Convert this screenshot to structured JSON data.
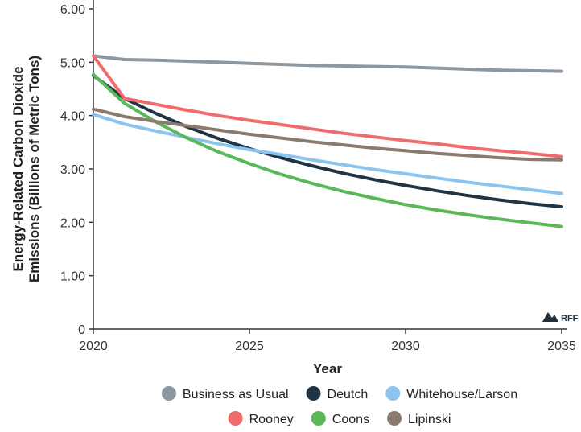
{
  "chart_data": {
    "type": "line",
    "xlabel": "Year",
    "ylabel_lines": [
      "Energy-Related Carbon Dioxide",
      "Emissions (Billions of Metric Tons)"
    ],
    "xlim": [
      2020,
      2035
    ],
    "ylim": [
      0,
      6
    ],
    "x_ticks": [
      2020,
      2025,
      2030,
      2035
    ],
    "x_tick_labels": [
      "2020",
      "2025",
      "2030",
      "2035"
    ],
    "y_ticks": [
      0,
      1,
      2,
      3,
      4,
      5,
      6
    ],
    "y_tick_labels": [
      "0",
      "1.00",
      "2.00",
      "3.00",
      "4.00",
      "5.00",
      "6.00"
    ],
    "grid": false,
    "legend_position": "bottom",
    "logo_text": "RFF",
    "x": [
      2020,
      2021,
      2022,
      2023,
      2024,
      2025,
      2026,
      2027,
      2028,
      2029,
      2030,
      2031,
      2032,
      2033,
      2034,
      2035
    ],
    "series": [
      {
        "name": "Business as Usual",
        "color": "#8c979f",
        "values": [
          5.12,
          5.05,
          5.04,
          5.02,
          5.0,
          4.98,
          4.96,
          4.94,
          4.93,
          4.92,
          4.91,
          4.89,
          4.87,
          4.85,
          4.84,
          4.83
        ]
      },
      {
        "name": "Deutch",
        "color": "#1f3445",
        "values": [
          4.75,
          4.32,
          4.04,
          3.79,
          3.57,
          3.38,
          3.21,
          3.06,
          2.92,
          2.8,
          2.69,
          2.59,
          2.5,
          2.42,
          2.35,
          2.29
        ]
      },
      {
        "name": "Whitehouse/Larson",
        "color": "#8cc4f0",
        "values": [
          4.02,
          3.84,
          3.71,
          3.59,
          3.47,
          3.36,
          3.27,
          3.17,
          3.08,
          2.99,
          2.91,
          2.83,
          2.75,
          2.68,
          2.61,
          2.54
        ]
      },
      {
        "name": "Rooney",
        "color": "#f06b6b",
        "values": [
          5.12,
          4.32,
          4.21,
          4.1,
          4.0,
          3.91,
          3.83,
          3.75,
          3.67,
          3.6,
          3.53,
          3.47,
          3.4,
          3.34,
          3.29,
          3.23
        ]
      },
      {
        "name": "Coons",
        "color": "#5ab85a",
        "values": [
          4.77,
          4.23,
          3.88,
          3.58,
          3.32,
          3.1,
          2.9,
          2.73,
          2.58,
          2.45,
          2.33,
          2.23,
          2.14,
          2.06,
          1.99,
          1.92
        ]
      },
      {
        "name": "Lipinski",
        "color": "#8b7a70",
        "values": [
          4.12,
          3.98,
          3.89,
          3.81,
          3.73,
          3.65,
          3.58,
          3.51,
          3.45,
          3.39,
          3.34,
          3.29,
          3.25,
          3.21,
          3.18,
          3.17
        ]
      }
    ],
    "legend_rows": [
      [
        "Business as Usual",
        "Deutch",
        "Whitehouse/Larson"
      ],
      [
        "Rooney",
        "Coons",
        "Lipinski"
      ]
    ]
  }
}
